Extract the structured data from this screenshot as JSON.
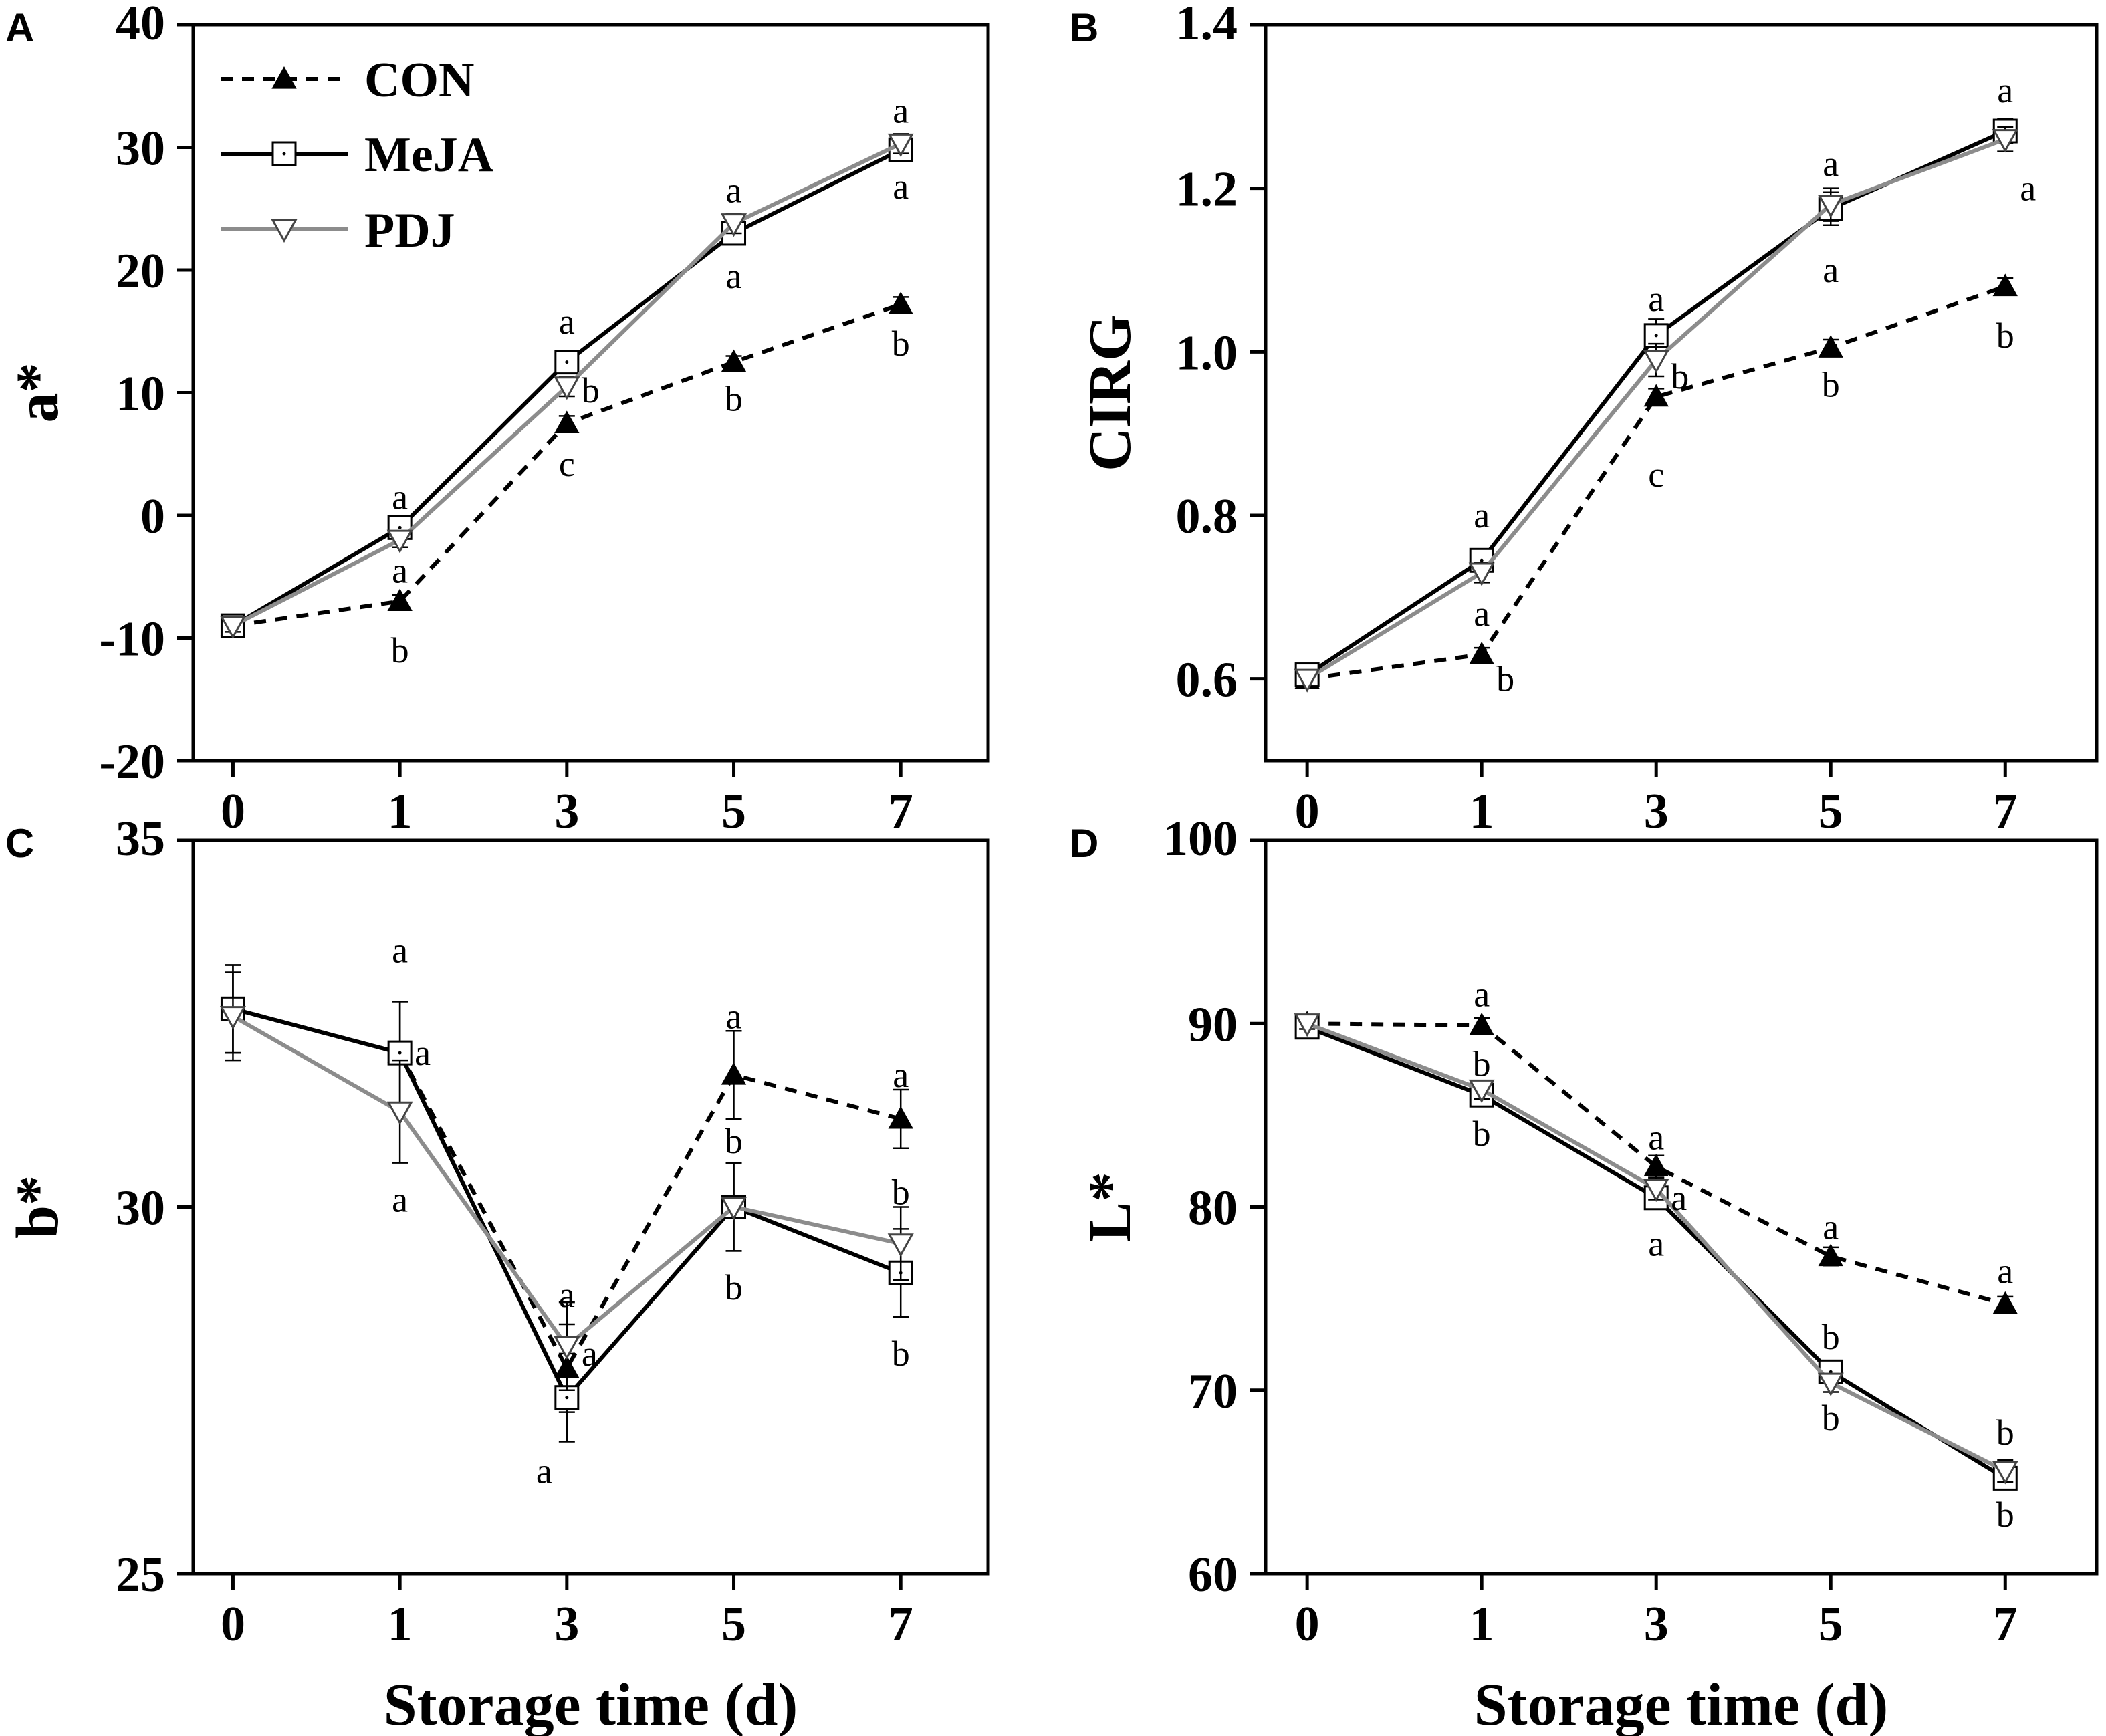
{
  "chart_data": [
    {
      "panel": "A",
      "type": "line",
      "ylabel": "a*",
      "xlabel": "",
      "categories": [
        "0",
        "1",
        "3",
        "5",
        "7"
      ],
      "ylim": [
        -20,
        40
      ],
      "yticks": [
        -20,
        -10,
        0,
        10,
        20,
        30,
        40
      ],
      "ytick_labels": [
        "-20",
        "-10",
        "0",
        "10",
        "20",
        "30",
        "40"
      ],
      "series": [
        {
          "name": "CON",
          "values": [
            -9,
            -7,
            7.5,
            12.5,
            17.2
          ],
          "err": [
            0.4,
            0.5,
            0.6,
            0.5,
            0.6
          ]
        },
        {
          "name": "MeJA",
          "values": [
            -9,
            -1,
            12.5,
            23,
            29.8
          ],
          "err": [
            0.5,
            0.6,
            0.8,
            0.8,
            0.8
          ]
        },
        {
          "name": "PDJ",
          "values": [
            -9,
            -2,
            10.5,
            23.8,
            30.3
          ],
          "err": [
            0.5,
            0.6,
            0.8,
            0.8,
            0.8
          ]
        }
      ],
      "annotations": [
        {
          "text": "a",
          "x": 1,
          "y": 1.5
        },
        {
          "text": "a",
          "x": 1,
          "y": -4.5
        },
        {
          "text": "b",
          "x": 1,
          "y": -11
        },
        {
          "text": "a",
          "x": 3,
          "y": 15.8
        },
        {
          "text": "b",
          "x": 3,
          "y": 10.2,
          "side": "right"
        },
        {
          "text": "c",
          "x": 3,
          "y": 4.2
        },
        {
          "text": "a",
          "x": 5,
          "y": 26.5
        },
        {
          "text": "a",
          "x": 5,
          "y": 19.5
        },
        {
          "text": "b",
          "x": 5,
          "y": 9.5
        },
        {
          "text": "a",
          "x": 7,
          "y": 33
        },
        {
          "text": "a",
          "x": 7,
          "y": 26.8
        },
        {
          "text": "b",
          "x": 7,
          "y": 14
        }
      ],
      "legend": {
        "placement": "top-left",
        "entries": [
          "CON",
          "MeJA",
          "PDJ"
        ]
      }
    },
    {
      "panel": "B",
      "type": "line",
      "ylabel": "CIRG",
      "xlabel": "",
      "categories": [
        "0",
        "1",
        "3",
        "5",
        "7"
      ],
      "ylim": [
        0.5,
        1.4
      ],
      "yticks": [
        0.6,
        0.8,
        1.0,
        1.2,
        1.4
      ],
      "ytick_labels": [
        "0.6",
        "0.8",
        "1.0",
        "1.2",
        "1.4"
      ],
      "series": [
        {
          "name": "CON",
          "values": [
            0.6,
            0.63,
            0.945,
            1.005,
            1.08
          ],
          "err": [
            0.008,
            0.008,
            0.01,
            0.01,
            0.01
          ]
        },
        {
          "name": "MeJA",
          "values": [
            0.605,
            0.745,
            1.02,
            1.175,
            1.27
          ],
          "err": [
            0.01,
            0.012,
            0.02,
            0.02,
            0.015
          ]
        },
        {
          "name": "PDJ",
          "values": [
            0.6,
            0.73,
            0.99,
            1.18,
            1.26
          ],
          "err": [
            0.01,
            0.012,
            0.02,
            0.02,
            0.015
          ]
        }
      ],
      "annotations": [
        {
          "text": "a",
          "x": 1,
          "y": 0.8
        },
        {
          "text": "a",
          "x": 1,
          "y": 0.68
        },
        {
          "text": "b",
          "x": 1,
          "y": 0.6,
          "side": "right"
        },
        {
          "text": "a",
          "x": 3,
          "y": 1.065
        },
        {
          "text": "b",
          "x": 3,
          "y": 0.97,
          "side": "right"
        },
        {
          "text": "c",
          "x": 3,
          "y": 0.85
        },
        {
          "text": "a",
          "x": 5,
          "y": 1.23
        },
        {
          "text": "a",
          "x": 5,
          "y": 1.1
        },
        {
          "text": "b",
          "x": 5,
          "y": 0.96
        },
        {
          "text": "a",
          "x": 7,
          "y": 1.32
        },
        {
          "text": "a",
          "x": 7,
          "y": 1.2,
          "side": "right"
        },
        {
          "text": "b",
          "x": 7,
          "y": 1.02
        }
      ]
    },
    {
      "panel": "C",
      "type": "line",
      "ylabel": "b*",
      "xlabel": "Storage time (d)",
      "categories": [
        "0",
        "1",
        "3",
        "5",
        "7"
      ],
      "ylim": [
        25,
        35
      ],
      "yticks": [
        25,
        30,
        35
      ],
      "ytick_labels": [
        "25",
        "30",
        "35"
      ],
      "series": [
        {
          "name": "CON",
          "values": [
            32.7,
            32.1,
            27.8,
            31.8,
            31.2
          ],
          "err": [
            0.6,
            0.7,
            0.6,
            0.6,
            0.4
          ]
        },
        {
          "name": "MeJA",
          "values": [
            32.7,
            32.1,
            27.4,
            30.0,
            29.1
          ],
          "err": [
            0.6,
            0.7,
            0.6,
            0.6,
            0.6
          ]
        },
        {
          "name": "PDJ",
          "values": [
            32.6,
            31.3,
            28.1,
            30.0,
            29.5
          ],
          "err": [
            0.6,
            0.7,
            0.6,
            0.6,
            0.5
          ]
        }
      ],
      "annotations": [
        {
          "text": "a",
          "x": 1,
          "y": 33.5
        },
        {
          "text": "a",
          "x": 1,
          "y": 32.1,
          "side": "right"
        },
        {
          "text": "a",
          "x": 1,
          "y": 30.1
        },
        {
          "text": "a",
          "x": 3,
          "y": 28.8
        },
        {
          "text": "a",
          "x": 3,
          "y": 28.0,
          "side": "right"
        },
        {
          "text": "a",
          "x": 3,
          "y": 26.4,
          "side": "left"
        },
        {
          "text": "a",
          "x": 5,
          "y": 32.6
        },
        {
          "text": "b",
          "x": 5,
          "y": 30.9
        },
        {
          "text": "b",
          "x": 5,
          "y": 28.9
        },
        {
          "text": "a",
          "x": 7,
          "y": 31.8
        },
        {
          "text": "b",
          "x": 7,
          "y": 30.2
        },
        {
          "text": "b",
          "x": 7,
          "y": 28.0
        }
      ]
    },
    {
      "panel": "D",
      "type": "line",
      "ylabel": "L*",
      "xlabel": "Storage time (d)",
      "categories": [
        "0",
        "1",
        "3",
        "5",
        "7"
      ],
      "ylim": [
        60,
        100
      ],
      "yticks": [
        60,
        70,
        80,
        90,
        100
      ],
      "ytick_labels": [
        "60",
        "70",
        "80",
        "90",
        "100"
      ],
      "series": [
        {
          "name": "CON",
          "values": [
            90,
            89.9,
            82.2,
            77.3,
            74.7
          ],
          "err": [
            0.3,
            0.4,
            0.6,
            0.5,
            0.4
          ]
        },
        {
          "name": "MeJA",
          "values": [
            89.8,
            86.1,
            80.5,
            71.0,
            65.2
          ],
          "err": [
            0.3,
            0.5,
            0.6,
            0.5,
            0.6
          ]
        },
        {
          "name": "PDJ",
          "values": [
            90,
            86.4,
            81.0,
            70.4,
            65.6
          ],
          "err": [
            0.3,
            0.5,
            0.6,
            0.5,
            0.6
          ]
        }
      ],
      "annotations": [
        {
          "text": "a",
          "x": 1,
          "y": 91.6
        },
        {
          "text": "b",
          "x": 1,
          "y": 87.8
        },
        {
          "text": "b",
          "x": 1,
          "y": 84.0
        },
        {
          "text": "a",
          "x": 3,
          "y": 83.8
        },
        {
          "text": "a",
          "x": 3,
          "y": 80.5,
          "side": "right"
        },
        {
          "text": "a",
          "x": 3,
          "y": 78.0
        },
        {
          "text": "a",
          "x": 5,
          "y": 78.9
        },
        {
          "text": "b",
          "x": 5,
          "y": 72.9
        },
        {
          "text": "b",
          "x": 5,
          "y": 68.5
        },
        {
          "text": "a",
          "x": 7,
          "y": 76.5
        },
        {
          "text": "b",
          "x": 7,
          "y": 67.7
        },
        {
          "text": "b",
          "x": 7,
          "y": 63.2
        }
      ]
    }
  ]
}
